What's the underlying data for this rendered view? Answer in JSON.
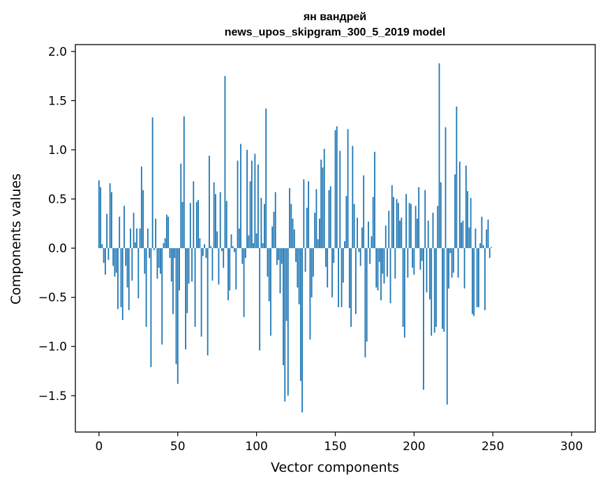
{
  "chart_data": {
    "type": "bar",
    "title": "ян вандрей",
    "subtitle": "news_upos_skipgram_300_5_2019 model",
    "xlabel": "Vector components",
    "ylabel": "Components values",
    "xlim": [
      -15,
      315
    ],
    "ylim": [
      -1.87,
      2.07
    ],
    "xticks": [
      0,
      50,
      100,
      150,
      200,
      250,
      300
    ],
    "xtick_labels": [
      "0",
      "50",
      "100",
      "150",
      "200",
      "250",
      "300"
    ],
    "yticks": [
      -1.5,
      -1.0,
      -0.5,
      0.0,
      0.5,
      1.0,
      1.5,
      2.0
    ],
    "ytick_labels": [
      "−1.5",
      "−1.0",
      "−0.5",
      "0.0",
      "0.5",
      "1.0",
      "1.5",
      "2.0"
    ],
    "grid": false,
    "bar_color": "#1f77b4",
    "x_start": 0,
    "values": [
      0.69,
      0.62,
      0.04,
      -0.15,
      -0.27,
      0.35,
      -0.12,
      0.66,
      0.57,
      -0.18,
      -0.29,
      -0.25,
      -0.62,
      0.32,
      -0.6,
      -0.73,
      0.43,
      -0.18,
      -0.4,
      -0.63,
      0.2,
      -0.33,
      0.36,
      0.06,
      0.2,
      -0.51,
      0.2,
      0.83,
      0.59,
      -0.26,
      -0.8,
      0.2,
      -0.1,
      -1.21,
      1.33,
      -0.02,
      0.3,
      -0.31,
      -0.2,
      -0.26,
      -0.98,
      0.05,
      0.1,
      0.34,
      0.32,
      -0.1,
      -0.34,
      -0.67,
      -0.1,
      -1.18,
      -1.38,
      -0.43,
      0.86,
      0.47,
      1.34,
      -1.03,
      -0.66,
      -0.36,
      0.46,
      -0.34,
      0.68,
      -0.8,
      0.47,
      0.49,
      0.1,
      -0.9,
      -0.08,
      0.04,
      -0.1,
      -1.09,
      0.94,
      0.02,
      -0.33,
      0.67,
      0.55,
      0.17,
      -0.37,
      0.57,
      -0.03,
      -0.2,
      1.75,
      0.48,
      -0.53,
      -0.43,
      0.14,
      0.02,
      -0.04,
      -0.42,
      0.89,
      0.2,
      1.06,
      -0.16,
      -0.7,
      -0.1,
      1.0,
      0.13,
      0.68,
      0.89,
      0.05,
      0.96,
      0.15,
      0.85,
      -1.04,
      0.51,
      0.05,
      0.45,
      1.42,
      -0.29,
      -0.54,
      -0.89,
      0.22,
      0.37,
      0.57,
      -0.17,
      -0.12,
      -0.46,
      -0.16,
      -1.19,
      -1.56,
      -0.74,
      -1.5,
      0.61,
      0.45,
      0.3,
      0.19,
      -0.14,
      -0.4,
      -0.57,
      -1.35,
      -1.67,
      0.7,
      -0.24,
      0.41,
      0.68,
      -0.93,
      -0.5,
      -0.29,
      0.36,
      0.6,
      0.09,
      0.3,
      0.9,
      0.82,
      1.01,
      -0.19,
      -0.4,
      0.59,
      0.63,
      -0.5,
      -0.15,
      1.2,
      1.24,
      -0.6,
      0.99,
      -0.6,
      -0.35,
      0.07,
      0.53,
      1.21,
      -0.61,
      -0.8,
      1.04,
      0.45,
      -0.67,
      0.31,
      -0.04,
      -0.18,
      0.21,
      0.74,
      -1.11,
      -0.95,
      0.27,
      -0.16,
      0.12,
      0.52,
      0.98,
      -0.4,
      -0.43,
      -0.14,
      -0.53,
      -0.26,
      -0.36,
      0.23,
      -0.29,
      0.38,
      -0.56,
      0.64,
      0.52,
      -0.31,
      0.5,
      0.46,
      0.28,
      0.31,
      -0.8,
      -0.91,
      0.55,
      -0.3,
      0.46,
      0.45,
      -0.2,
      -0.27,
      0.43,
      0.3,
      0.62,
      -0.22,
      -0.13,
      -1.44,
      0.59,
      -0.45,
      0.28,
      -0.52,
      -0.89,
      0.36,
      -0.86,
      -0.8,
      0.43,
      1.88,
      0.67,
      -0.82,
      -0.85,
      1.23,
      -1.59,
      -0.41,
      -0.05,
      -0.3,
      -0.25,
      0.75,
      1.44,
      -0.3,
      0.88,
      0.26,
      0.28,
      -0.41,
      0.84,
      0.58,
      0.21,
      0.51,
      -0.67,
      -0.69,
      0.2,
      -0.6,
      -0.6,
      0.05,
      0.32,
      0.03,
      -0.63,
      0.19,
      0.29,
      -0.1,
      0.01
    ]
  }
}
